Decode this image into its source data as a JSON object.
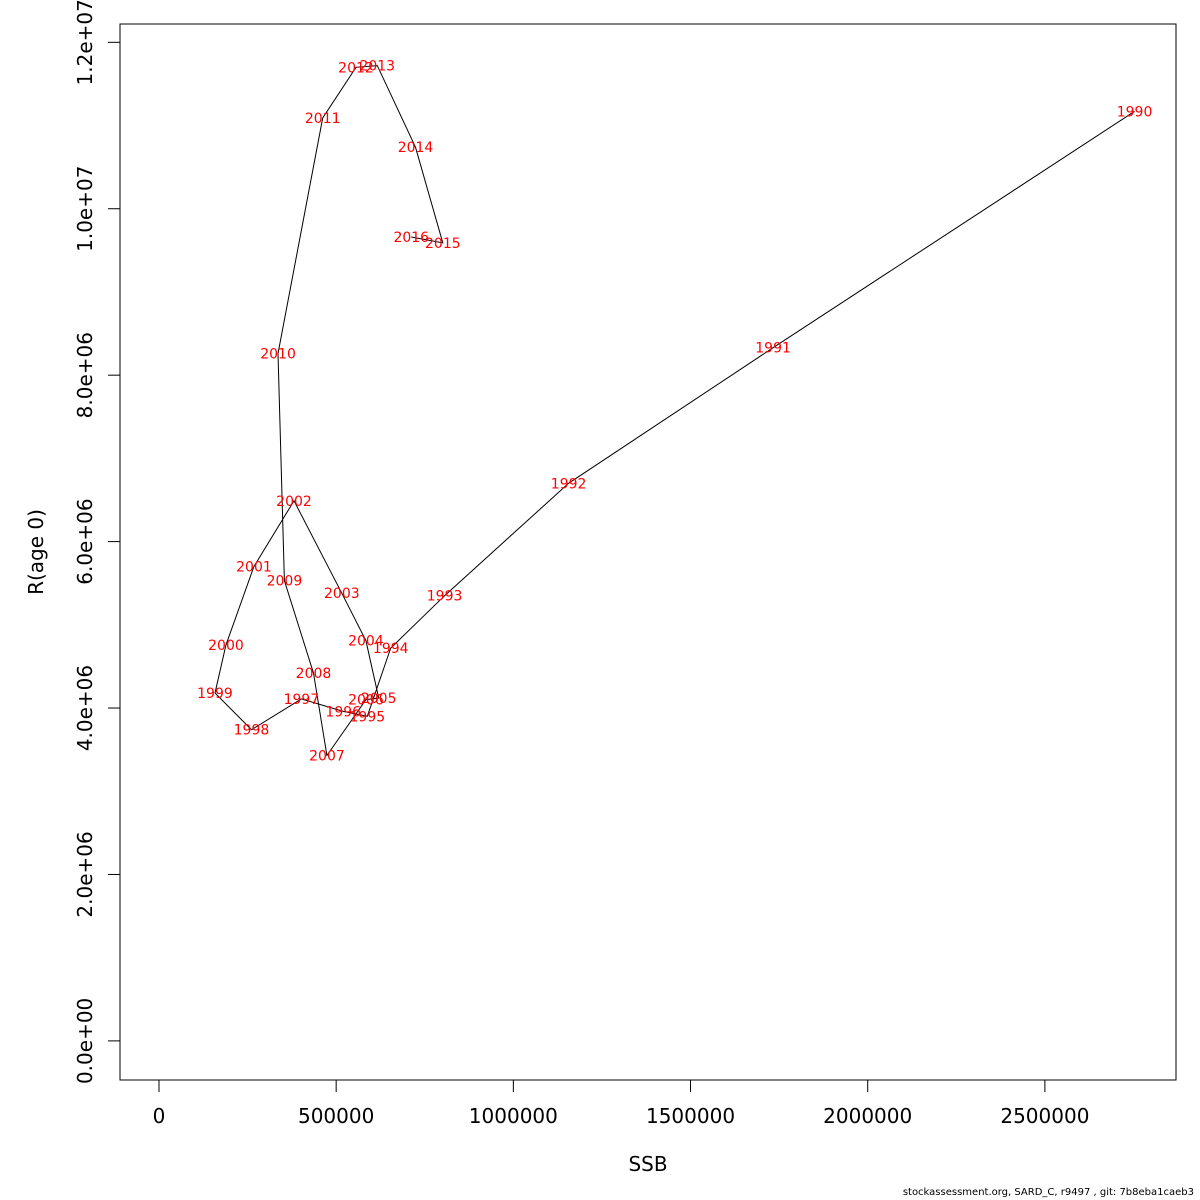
{
  "chart_data": {
    "type": "line",
    "title": "",
    "xlabel": "SSB",
    "ylabel": "R(age 0)",
    "xlim": [
      -110000,
      2870000
    ],
    "ylim": [
      -470000,
      12220000
    ],
    "x_ticks": [
      0,
      500000,
      1000000,
      1500000,
      2000000,
      2500000
    ],
    "x_tick_labels": [
      "0",
      "500000",
      "1000000",
      "1500000",
      "2000000",
      "2500000"
    ],
    "y_ticks": [
      0,
      2000000,
      4000000,
      6000000,
      8000000,
      10000000,
      12000000
    ],
    "y_tick_labels": [
      "0.0e+00",
      "2.0e+06",
      "4.0e+06",
      "6.0e+06",
      "8.0e+06",
      "1.0e+07",
      "1.2e+07"
    ],
    "grid": false,
    "legend": "none",
    "line_color": "#000000",
    "label_color": "#ff0000",
    "points": [
      {
        "year": "1990",
        "x": 2753000,
        "y": 11170000
      },
      {
        "year": "1991",
        "x": 1733000,
        "y": 8330000
      },
      {
        "year": "1992",
        "x": 1156000,
        "y": 6700000
      },
      {
        "year": "1993",
        "x": 806000,
        "y": 5350000
      },
      {
        "year": "1994",
        "x": 654000,
        "y": 4720000
      },
      {
        "year": "1995",
        "x": 588000,
        "y": 3900000
      },
      {
        "year": "1996",
        "x": 520000,
        "y": 3960000
      },
      {
        "year": "1997",
        "x": 402000,
        "y": 4110000
      },
      {
        "year": "1998",
        "x": 261000,
        "y": 3740000
      },
      {
        "year": "1999",
        "x": 158000,
        "y": 4180000
      },
      {
        "year": "2000",
        "x": 189000,
        "y": 4760000
      },
      {
        "year": "2001",
        "x": 268000,
        "y": 5700000
      },
      {
        "year": "2002",
        "x": 381000,
        "y": 6490000
      },
      {
        "year": "2003",
        "x": 516000,
        "y": 5380000
      },
      {
        "year": "2004",
        "x": 584000,
        "y": 4810000
      },
      {
        "year": "2005",
        "x": 620000,
        "y": 4120000
      },
      {
        "year": "2006",
        "x": 584000,
        "y": 4100000
      },
      {
        "year": "2007",
        "x": 474000,
        "y": 3430000
      },
      {
        "year": "2008",
        "x": 436000,
        "y": 4420000
      },
      {
        "year": "2009",
        "x": 354000,
        "y": 5530000
      },
      {
        "year": "2010",
        "x": 336000,
        "y": 8260000
      },
      {
        "year": "2011",
        "x": 462000,
        "y": 11090000
      },
      {
        "year": "2012",
        "x": 556000,
        "y": 11700000
      },
      {
        "year": "2013",
        "x": 616000,
        "y": 11720000
      },
      {
        "year": "2014",
        "x": 724000,
        "y": 10740000
      },
      {
        "year": "2015",
        "x": 801000,
        "y": 9590000
      },
      {
        "year": "2016",
        "x": 712000,
        "y": 9660000
      }
    ]
  },
  "footer_text": "stockassessment.org, SARD_C, r9497 , git: 7b8eba1caeb3"
}
